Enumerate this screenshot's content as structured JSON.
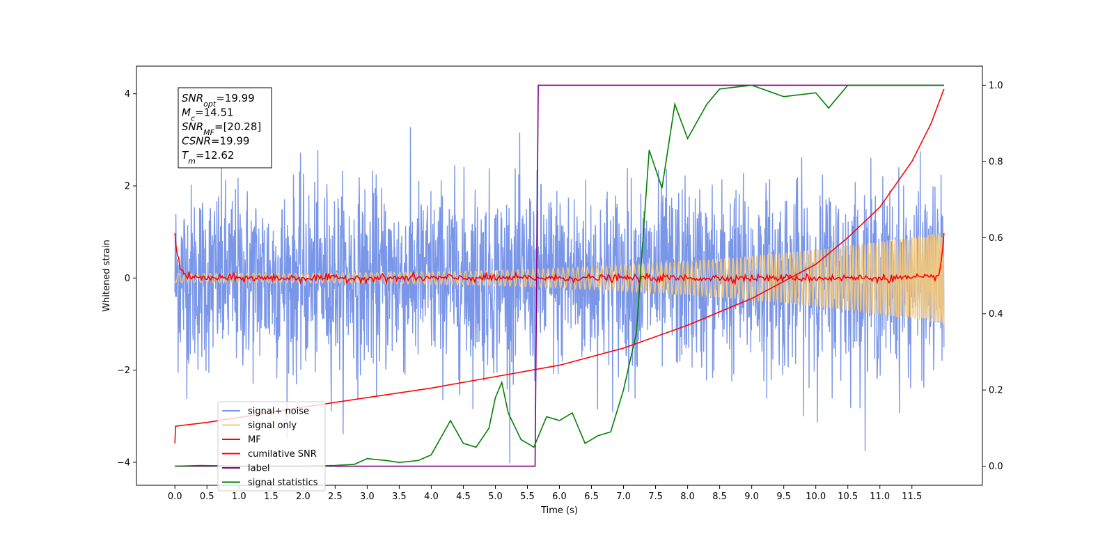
{
  "chart_data": {
    "type": "line",
    "title": "",
    "xlabel": "Time (s)",
    "ylabel": "Whitened strain",
    "y2label": "",
    "xlim": [
      -0.6,
      12.6
    ],
    "ylim": [
      -4.5,
      4.6
    ],
    "y2lim": [
      -0.05,
      1.05
    ],
    "x_ticks": [
      "0.0",
      "0.5",
      "1.0",
      "1.5",
      "2.0",
      "2.5",
      "3.0",
      "3.5",
      "4.0",
      "4.5",
      "5.0",
      "5.5",
      "6.0",
      "6.5",
      "7.0",
      "7.5",
      "8.0",
      "8.5",
      "9.0",
      "9.5",
      "10.0",
      "10.5",
      "11.0",
      "11.5"
    ],
    "y_ticks": [
      "−4",
      "−2",
      "0",
      "2",
      "4"
    ],
    "y2_ticks": [
      "0.0",
      "0.2",
      "0.4",
      "0.6",
      "0.8",
      "1.0"
    ],
    "grid": false,
    "legend_position": "lower-left",
    "annotation": [
      {
        "base": "SNR",
        "sub": "opt",
        "value": "=19.99"
      },
      {
        "base": "M",
        "sub": "c",
        "value": "=14.51"
      },
      {
        "base": "SNR",
        "sub": "MF",
        "value": "=[20.28]"
      },
      {
        "base": "CSNR",
        "sub": "",
        "value": "=19.99"
      },
      {
        "base": "T",
        "sub": "m",
        "value": "=12.62"
      }
    ],
    "series": [
      {
        "name": "signal+ noise",
        "color": "#7a96e8",
        "axis": "left",
        "kind": "noise",
        "amplitude": 1.0,
        "peak": 4.15,
        "x_range": [
          0,
          12.0
        ]
      },
      {
        "name": "signal only",
        "color": "#f5c97a",
        "axis": "left",
        "kind": "chirp",
        "amplitude_start": 0.1,
        "amplitude_end": 1.0,
        "x_range": [
          0,
          12.0
        ]
      },
      {
        "name": "MF",
        "color": "#ff0000",
        "axis": "left",
        "kind": "mf",
        "x_range": [
          0,
          12.0
        ]
      },
      {
        "name": "cumilative SNR",
        "color": "#ff0000",
        "axis": "right",
        "x": [
          0.0,
          0.01,
          0.5,
          1.0,
          2.0,
          3.0,
          4.0,
          5.0,
          6.0,
          7.0,
          8.0,
          9.0,
          10.0,
          10.5,
          11.0,
          11.5,
          11.8,
          12.0
        ],
        "y": [
          0.06,
          0.105,
          0.115,
          0.128,
          0.155,
          0.18,
          0.205,
          0.235,
          0.265,
          0.31,
          0.37,
          0.44,
          0.53,
          0.6,
          0.68,
          0.8,
          0.9,
          0.99
        ]
      },
      {
        "name": "label",
        "color": "#800080",
        "axis": "right",
        "x": [
          0.0,
          5.62,
          5.67,
          12.0
        ],
        "y": [
          0.0,
          0.0,
          1.0,
          1.0
        ]
      },
      {
        "name": "signal statistics",
        "color": "#008000",
        "axis": "right",
        "x": [
          0.0,
          0.4,
          1.0,
          2.0,
          2.5,
          2.8,
          3.0,
          3.3,
          3.5,
          3.8,
          4.0,
          4.3,
          4.5,
          4.7,
          4.9,
          5.0,
          5.1,
          5.2,
          5.4,
          5.6,
          5.8,
          6.0,
          6.2,
          6.4,
          6.6,
          6.8,
          7.0,
          7.2,
          7.4,
          7.6,
          7.8,
          8.0,
          8.3,
          8.5,
          9.0,
          9.5,
          10.0,
          10.2,
          10.5,
          11.0,
          12.0
        ],
        "y": [
          0.0,
          0.002,
          0.0,
          0.0,
          0.002,
          0.005,
          0.02,
          0.015,
          0.01,
          0.015,
          0.03,
          0.12,
          0.06,
          0.05,
          0.1,
          0.18,
          0.22,
          0.14,
          0.07,
          0.05,
          0.13,
          0.12,
          0.14,
          0.06,
          0.08,
          0.09,
          0.2,
          0.35,
          0.83,
          0.73,
          0.95,
          0.86,
          0.95,
          0.99,
          1.0,
          0.97,
          0.98,
          0.94,
          1.0,
          1.0,
          1.0
        ]
      }
    ]
  }
}
